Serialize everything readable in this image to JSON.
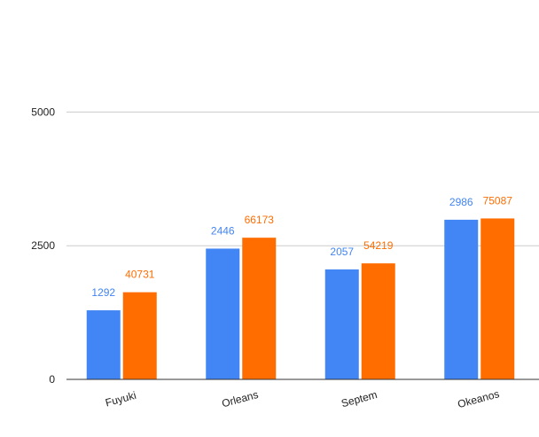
{
  "chart_data": {
    "type": "bar",
    "title": "",
    "xlabel": "",
    "ylabel": "",
    "categories": [
      "Fuyuki",
      "Orleans",
      "Septem",
      "Okeanos"
    ],
    "series": [
      {
        "color": "#4285f4",
        "values": [
          1292,
          2446,
          2057,
          2986
        ],
        "plotted_values": [
          1292,
          2446,
          2057,
          2986
        ],
        "labels": [
          "1292",
          "2446",
          "2057",
          "2986"
        ]
      },
      {
        "color": "#ff6d01",
        "values": [
          40731,
          66173,
          54219,
          75087
        ],
        "plotted_values": [
          1630,
          2650,
          2170,
          3010
        ],
        "labels": [
          "40731",
          "66173",
          "54219",
          "75087"
        ]
      }
    ],
    "ylim": [
      0,
      6300
    ],
    "yticks": [
      0,
      2500,
      5000
    ],
    "ytick_labels": [
      "0",
      "2500",
      "5000"
    ],
    "grid": true,
    "legend": "none",
    "axis_color": "#333333",
    "grid_color": "#cccccc"
  }
}
